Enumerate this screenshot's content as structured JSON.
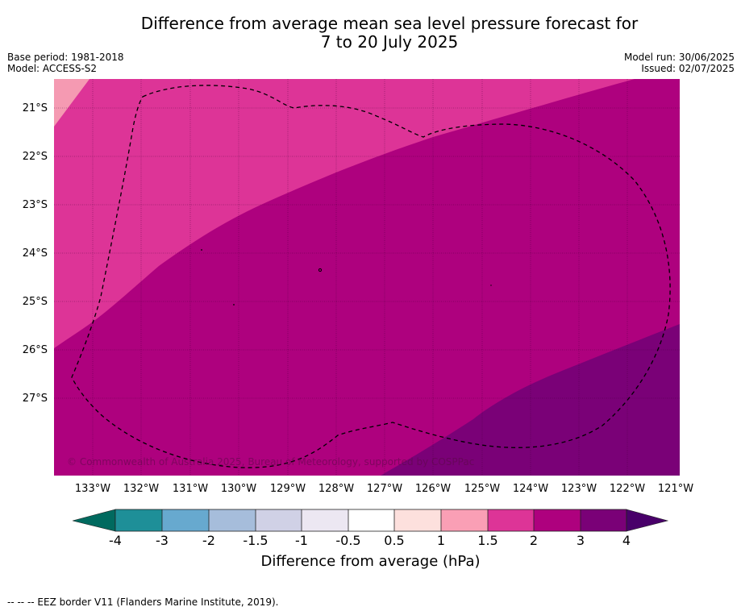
{
  "title": {
    "line1": "Difference from average mean sea level pressure forecast for",
    "line2": "7 to 20 July 2025"
  },
  "meta_left": {
    "base_period": "Base period: 1981-2018",
    "model": "Model: ACCESS-S2"
  },
  "meta_right": {
    "model_run": "Model run: 30/06/2025",
    "issued": "Issued: 02/07/2025"
  },
  "map": {
    "latitude_labels": [
      "21°S",
      "22°S",
      "23°S",
      "24°S",
      "25°S",
      "26°S",
      "27°S"
    ],
    "longitude_labels": [
      "133°W",
      "132°W",
      "131°W",
      "130°W",
      "129°W",
      "128°W",
      "127°W",
      "126°W",
      "125°W",
      "124°W",
      "123°W",
      "122°W",
      "121°W"
    ],
    "copyright": "© Commonwealth of Australia 2025, Bureau of Meteorology, supported by COSPPac",
    "region_colors": {
      "anomaly_1_to_1_5": "#f59ab2",
      "anomaly_1_5_to_2": "#dd3497",
      "anomaly_2_to_3": "#ae017e",
      "anomaly_3_to_4": "#7a0177"
    }
  },
  "colorbar": {
    "ticks": [
      "-4",
      "-3",
      "-2",
      "-1.5",
      "-1",
      "-0.5",
      "0.5",
      "1",
      "1.5",
      "2",
      "3",
      "4"
    ],
    "colors": [
      "#006a5f",
      "#1e8f98",
      "#67a9cf",
      "#a6bddb",
      "#d0d1e6",
      "#ece7f2",
      "#ffffff",
      "#fde0dd",
      "#fa9fb5",
      "#dd3497",
      "#ae017e",
      "#7a0177",
      "#49006a"
    ],
    "label": "Difference from average (hPa)"
  },
  "footnote": "--  --  -- EEZ border V11 (Flanders Marine Institute, 2019)."
}
